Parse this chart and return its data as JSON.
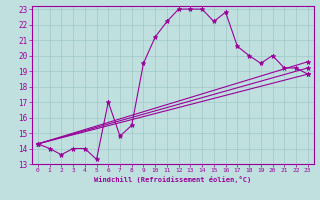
{
  "title": "",
  "xlabel": "Windchill (Refroidissement éolien,°C)",
  "bg_color": "#c0e0e0",
  "line_color": "#990099",
  "grid_color": "#a0c8c8",
  "xlim": [
    -0.5,
    23.5
  ],
  "ylim": [
    13,
    23.2
  ],
  "xticks": [
    0,
    1,
    2,
    3,
    4,
    5,
    6,
    7,
    8,
    9,
    10,
    11,
    12,
    13,
    14,
    15,
    16,
    17,
    18,
    19,
    20,
    21,
    22,
    23
  ],
  "yticks": [
    13,
    14,
    15,
    16,
    17,
    18,
    19,
    20,
    21,
    22,
    23
  ],
  "lines": [
    {
      "x": [
        0,
        1,
        2,
        3,
        4,
        5,
        6,
        7,
        8,
        9,
        10,
        11,
        12,
        13,
        14,
        15,
        16,
        17,
        18,
        19,
        20,
        21,
        22,
        23
      ],
      "y": [
        14.3,
        14.0,
        13.6,
        14.0,
        14.0,
        13.3,
        17.0,
        14.8,
        15.5,
        19.5,
        21.2,
        22.2,
        23.0,
        23.0,
        23.0,
        22.2,
        22.8,
        20.6,
        20.0,
        19.5,
        20.0,
        19.2,
        19.2,
        18.8
      ]
    },
    {
      "x": [
        0,
        23
      ],
      "y": [
        14.3,
        19.2
      ]
    },
    {
      "x": [
        0,
        23
      ],
      "y": [
        14.3,
        18.8
      ]
    },
    {
      "x": [
        0,
        23
      ],
      "y": [
        14.3,
        19.6
      ]
    }
  ]
}
